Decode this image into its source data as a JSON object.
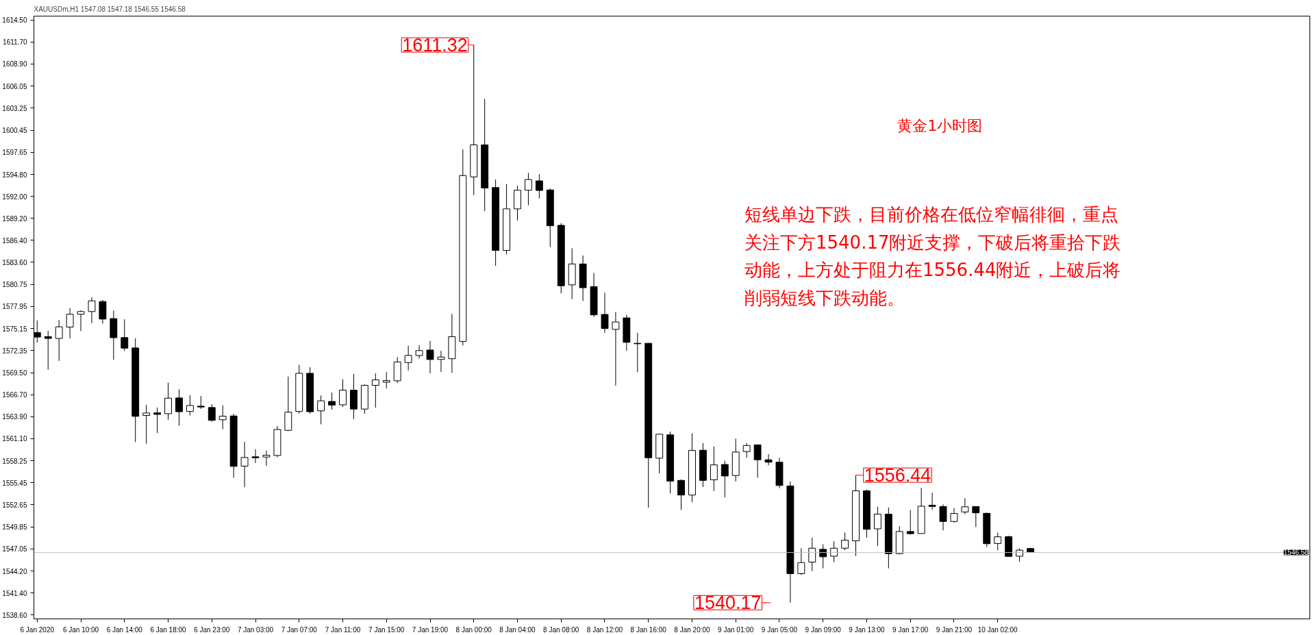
{
  "chart_data": {
    "type": "candlestick",
    "title": "XAUUSDm,H1  1547.08 1547.18 1546.55 1546.58",
    "categories": [
      "6 Jan 2020",
      null,
      null,
      null,
      "6 Jan 10:00",
      null,
      null,
      null,
      "6 Jan 14:00",
      null,
      null,
      null,
      "6 Jan 18:00",
      null,
      null,
      null,
      "6 Jan 23:00",
      null,
      null,
      null,
      "7 Jan 03:00",
      null,
      null,
      null,
      "7 Jan 07:00",
      null,
      null,
      null,
      "7 Jan 11:00",
      null,
      null,
      null,
      "7 Jan 15:00",
      null,
      null,
      null,
      "7 Jan 19:00",
      null,
      null,
      null,
      "8 Jan 00:00",
      null,
      null,
      null,
      "8 Jan 04:00",
      null,
      null,
      null,
      "8 Jan 08:00",
      null,
      null,
      null,
      "8 Jan 12:00",
      null,
      null,
      null,
      "8 Jan 16:00",
      null,
      null,
      null,
      "8 Jan 20:00",
      null,
      null,
      null,
      "9 Jan 01:00",
      null,
      null,
      null,
      "9 Jan 05:00",
      null,
      null,
      null,
      "9 Jan 09:00",
      null,
      null,
      null,
      "9 Jan 13:00",
      null,
      null,
      null,
      "9 Jan 17:00",
      null,
      null,
      null,
      "9 Jan 21:00",
      null,
      null,
      null,
      "10 Jan 02:00",
      null,
      null,
      null
    ],
    "ohlc": [
      [
        1574.62,
        1576.18,
        1573.35,
        1574.05
      ],
      [
        1574.11,
        1574.85,
        1569.89,
        1573.88
      ],
      [
        1573.88,
        1576.24,
        1571.02,
        1575.36
      ],
      [
        1575.33,
        1577.74,
        1573.88,
        1576.97
      ],
      [
        1576.97,
        1577.46,
        1574.82,
        1577.31
      ],
      [
        1577.31,
        1579.13,
        1575.84,
        1578.68
      ],
      [
        1578.59,
        1578.79,
        1575.76,
        1576.35
      ],
      [
        1576.41,
        1577.43,
        1571.16,
        1573.97
      ],
      [
        1573.99,
        1576.32,
        1572.27,
        1572.64
      ],
      [
        1572.67,
        1573.91,
        1560.65,
        1563.94
      ],
      [
        1564.05,
        1565.41,
        1560.45,
        1564.36
      ],
      [
        1564.39,
        1565.07,
        1561.81,
        1564.19
      ],
      [
        1564.28,
        1568.24,
        1563.51,
        1566.26
      ],
      [
        1566.29,
        1567.39,
        1562.75,
        1564.53
      ],
      [
        1564.56,
        1566.63,
        1564.05,
        1565.32
      ],
      [
        1565.24,
        1566.54,
        1564.9,
        1565.13
      ],
      [
        1565.07,
        1565.49,
        1563.26,
        1563.43
      ],
      [
        1563.51,
        1565.35,
        1562.29,
        1563.96
      ],
      [
        1563.99,
        1564.28,
        1556.11,
        1557.56
      ],
      [
        1557.59,
        1560.68,
        1554.92,
        1558.69
      ],
      [
        1558.78,
        1559.74,
        1557.98,
        1558.66
      ],
      [
        1558.75,
        1559.57,
        1557.64,
        1558.98
      ],
      [
        1558.95,
        1562.72,
        1558.72,
        1562.26
      ],
      [
        1562.15,
        1569.01,
        1562.07,
        1564.47
      ],
      [
        1564.56,
        1570.51,
        1564.28,
        1569.43
      ],
      [
        1569.43,
        1570.2,
        1564.28,
        1564.53
      ],
      [
        1564.64,
        1566.6,
        1562.92,
        1565.92
      ],
      [
        1565.84,
        1566.97,
        1564.79,
        1565.38
      ],
      [
        1565.41,
        1568.67,
        1565.13,
        1567.28
      ],
      [
        1567.28,
        1569.35,
        1563.57,
        1564.87
      ],
      [
        1564.87,
        1568.02,
        1564.28,
        1567.9
      ],
      [
        1567.9,
        1569.42,
        1565.05,
        1568.59
      ],
      [
        1568.3,
        1569.6,
        1567.5,
        1568.5
      ],
      [
        1568.48,
        1571.5,
        1568.2,
        1570.88
      ],
      [
        1570.8,
        1572.96,
        1569.8,
        1571.71
      ],
      [
        1571.7,
        1573.0,
        1571.3,
        1572.33
      ],
      [
        1572.4,
        1573.58,
        1569.42,
        1571.19
      ],
      [
        1571.2,
        1572.3,
        1569.6,
        1571.5
      ],
      [
        1571.29,
        1577.0,
        1569.5,
        1574.1
      ],
      [
        1573.5,
        1598.0,
        1573.0,
        1594.66
      ],
      [
        1594.49,
        1611.32,
        1592.17,
        1598.57
      ],
      [
        1598.57,
        1604.44,
        1590.12,
        1593.07
      ],
      [
        1593.13,
        1594.15,
        1583.15,
        1585.11
      ],
      [
        1585.11,
        1593.58,
        1584.6,
        1590.41
      ],
      [
        1590.41,
        1593.38,
        1588.93,
        1592.79
      ],
      [
        1592.79,
        1595.0,
        1590.86,
        1594.15
      ],
      [
        1593.98,
        1594.83,
        1591.74,
        1592.76
      ],
      [
        1592.82,
        1593.02,
        1585.53,
        1588.25
      ],
      [
        1588.31,
        1588.59,
        1579.64,
        1580.6
      ],
      [
        1580.71,
        1585.39,
        1578.9,
        1583.38
      ],
      [
        1583.38,
        1584.46,
        1578.65,
        1580.35
      ],
      [
        1580.49,
        1582.24,
        1576.6,
        1576.89
      ],
      [
        1576.94,
        1579.72,
        1574.6,
        1575.15
      ],
      [
        1575.04,
        1577.26,
        1567.86,
        1575.98
      ],
      [
        1576.5,
        1576.9,
        1572.3,
        1573.38
      ],
      [
        1573.26,
        1574.59,
        1569.57,
        1573.2
      ],
      [
        1573.26,
        1573.3,
        1552.3,
        1558.66
      ],
      [
        1558.6,
        1561.7,
        1556.67,
        1561.66
      ],
      [
        1561.58,
        1562.0,
        1554.1,
        1555.68
      ],
      [
        1555.77,
        1555.9,
        1552.0,
        1553.9
      ],
      [
        1553.9,
        1561.78,
        1553.0,
        1559.59
      ],
      [
        1559.62,
        1560.53,
        1554.92,
        1555.77
      ],
      [
        1555.85,
        1560.1,
        1554.41,
        1557.75
      ],
      [
        1557.8,
        1558.26,
        1553.6,
        1556.33
      ],
      [
        1556.39,
        1561.1,
        1555.63,
        1559.39
      ],
      [
        1559.45,
        1560.53,
        1558.66,
        1560.22
      ],
      [
        1560.3,
        1560.35,
        1556.11,
        1558.4
      ],
      [
        1558.4,
        1559.11,
        1557.69,
        1558.09
      ],
      [
        1558.09,
        1558.66,
        1554.78,
        1555.12
      ],
      [
        1555.06,
        1555.63,
        1540.17,
        1543.87
      ],
      [
        1543.87,
        1547.12,
        1543.72,
        1545.28
      ],
      [
        1545.34,
        1548.46,
        1544.21,
        1547.12
      ],
      [
        1546.98,
        1547.61,
        1544.55,
        1546.02
      ],
      [
        1546.1,
        1548.0,
        1545.34,
        1547.12
      ],
      [
        1547.12,
        1549.11,
        1546.84,
        1548.14
      ],
      [
        1548.06,
        1556.44,
        1546.13,
        1554.44
      ],
      [
        1554.44,
        1554.6,
        1548.46,
        1549.53
      ],
      [
        1549.59,
        1552.42,
        1547.41,
        1551.46
      ],
      [
        1551.46,
        1552.31,
        1544.55,
        1546.42
      ],
      [
        1546.42,
        1549.93,
        1546.33,
        1549.25
      ],
      [
        1549.25,
        1552.0,
        1548.85,
        1548.97
      ],
      [
        1548.99,
        1554.81,
        1548.97,
        1552.48
      ],
      [
        1552.6,
        1554.21,
        1552.03,
        1552.45
      ],
      [
        1552.43,
        1552.71,
        1549.39,
        1550.53
      ],
      [
        1550.53,
        1552.23,
        1550.39,
        1551.55
      ],
      [
        1551.74,
        1553.5,
        1551.46,
        1552.4
      ],
      [
        1552.43,
        1552.45,
        1549.82,
        1551.63
      ],
      [
        1551.57,
        1551.66,
        1547.27,
        1547.69
      ],
      [
        1547.72,
        1549.11,
        1546.84,
        1548.57
      ],
      [
        1548.6,
        1548.68,
        1546.02,
        1546.07
      ],
      [
        1546.1,
        1547.12,
        1545.4,
        1546.87
      ],
      [
        1547.08,
        1547.18,
        1546.55,
        1546.58
      ]
    ],
    "color": "#000000",
    "ylim": [
      1538.1,
      1615.0
    ],
    "yticks": [
      {
        "value": 1614.5,
        "label": "1614.50"
      },
      {
        "value": 1611.7,
        "label": "1611.70"
      },
      {
        "value": 1608.9,
        "label": "1608.90"
      },
      {
        "value": 1606.05,
        "label": "1606.05"
      },
      {
        "value": 1603.25,
        "label": "1603.25"
      },
      {
        "value": 1600.45,
        "label": "1600.45"
      },
      {
        "value": 1597.65,
        "label": "1597.65"
      },
      {
        "value": 1594.8,
        "label": "1594.80"
      },
      {
        "value": 1592.0,
        "label": "1592.00"
      },
      {
        "value": 1589.2,
        "label": "1589.20"
      },
      {
        "value": 1586.4,
        "label": "1586.40"
      },
      {
        "value": 1583.6,
        "label": "1583.60"
      },
      {
        "value": 1580.75,
        "label": "1580.75"
      },
      {
        "value": 1577.95,
        "label": "1577.95"
      },
      {
        "value": 1575.15,
        "label": "1575.15"
      },
      {
        "value": 1572.35,
        "label": "1572.35"
      },
      {
        "value": 1569.5,
        "label": "1569.50"
      },
      {
        "value": 1566.7,
        "label": "1566.70"
      },
      {
        "value": 1563.9,
        "label": "1563.90"
      },
      {
        "value": 1561.1,
        "label": "1561.10"
      },
      {
        "value": 1558.25,
        "label": "1558.25"
      },
      {
        "value": 1555.45,
        "label": "1555.45"
      },
      {
        "value": 1552.65,
        "label": "1552.65"
      },
      {
        "value": 1549.85,
        "label": "1549.85"
      },
      {
        "value": 1547.05,
        "label": "1547.05"
      },
      {
        "value": 1544.2,
        "label": "1544.20"
      },
      {
        "value": 1541.4,
        "label": "1541.40"
      },
      {
        "value": 1538.6,
        "label": "1538.60"
      }
    ],
    "ref_lines": [
      {
        "axis": "y",
        "value": 1546.58,
        "label": "1546.58",
        "color": "#c0c0c0"
      }
    ],
    "annotations": [
      {
        "text": "1611.32",
        "x": "8 Jan 00:00",
        "y": 1611.32
      },
      "1556.44",
      "1540.17",
      "黄金1小时图",
      "短线单边下跌，目前价格在低位窄幅徘徊，重点关注下方1540.17附近支撑，下破后将重拾下跌动能，上方处于阻力在1556.44附近，上破后将削弱短线下跌动能。"
    ],
    "grid": false
  }
}
